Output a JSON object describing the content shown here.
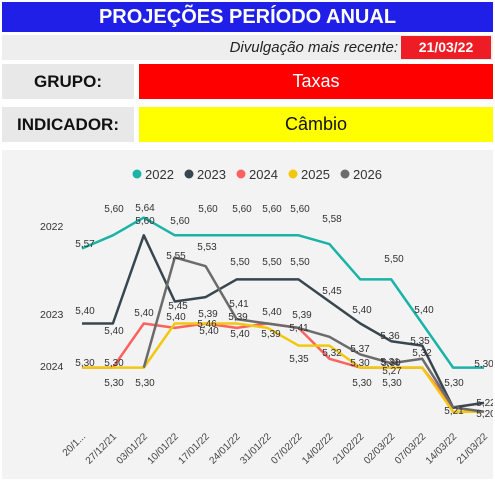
{
  "header": {
    "title": "PROJEÇÕES PERÍODO ANUAL"
  },
  "publication": {
    "label": "Divulgação mais recente:",
    "date": "21/03/22"
  },
  "grupo": {
    "label": "GRUPO:",
    "value": "Taxas"
  },
  "indicador": {
    "label": "INDICADOR:",
    "value": "Câmbio"
  },
  "colors": {
    "title_bg": "#1f1fe8",
    "date_bg": "#ee1c25",
    "grupo_bg": "#ff0000",
    "indicador_bg": "#ffff00"
  },
  "chart_data": {
    "type": "line",
    "categories": [
      "20/1...",
      "27/12/21",
      "03/01/22",
      "10/01/22",
      "17/01/22",
      "24/01/22",
      "31/01/22",
      "07/02/22",
      "14/02/22",
      "21/02/22",
      "02/03/22",
      "07/03/22",
      "14/03/22",
      "21/03/22"
    ],
    "ylim": [
      5.17,
      5.68
    ],
    "series": [
      {
        "name": "2022",
        "color": "#1ab3a6",
        "values": [
          5.57,
          5.6,
          5.64,
          5.6,
          5.6,
          5.6,
          5.6,
          5.6,
          5.58,
          5.5,
          5.5,
          5.4,
          5.3,
          5.3
        ]
      },
      {
        "name": "2023",
        "color": "#37464f",
        "values": [
          5.4,
          5.4,
          5.6,
          5.45,
          5.46,
          5.5,
          5.5,
          5.5,
          5.45,
          5.4,
          5.36,
          5.35,
          5.21,
          5.22
        ]
      },
      {
        "name": "2024",
        "color": "#fd625e",
        "values": [
          5.3,
          5.3,
          5.4,
          5.39,
          5.4,
          5.39,
          5.4,
          5.39,
          5.32,
          5.3,
          5.3,
          5.3,
          5.21,
          5.2
        ]
      },
      {
        "name": "2025",
        "color": "#f2c80f",
        "values": [
          5.3,
          5.3,
          5.3,
          5.4,
          5.4,
          5.4,
          5.39,
          5.35,
          5.35,
          5.3,
          5.3,
          5.3,
          5.2,
          5.2
        ]
      },
      {
        "name": "2026",
        "color": "#6b6b6b",
        "values": [
          null,
          null,
          5.3,
          5.55,
          5.53,
          5.41,
          5.4,
          5.39,
          5.37,
          5.33,
          5.31,
          5.32,
          5.21,
          5.2
        ]
      }
    ],
    "data_labels": [
      {
        "text": "5,57"
      },
      {
        "text": "5,60"
      },
      {
        "text": "5,64"
      },
      {
        "text": "5,60"
      },
      {
        "text": "5,60"
      },
      {
        "text": "5,60"
      },
      {
        "text": "5,60"
      },
      {
        "text": "5,58"
      },
      {
        "text": "5,50"
      },
      {
        "text": "5,40"
      },
      {
        "text": "5,30"
      },
      {
        "text": "5,40"
      },
      {
        "text": "5,40"
      },
      {
        "text": "5,60"
      },
      {
        "text": "5,60"
      },
      {
        "text": "5,45"
      },
      {
        "text": "5,46"
      },
      {
        "text": "5,50"
      },
      {
        "text": "5,50"
      },
      {
        "text": "5,50"
      },
      {
        "text": "5,45"
      },
      {
        "text": "5,40"
      },
      {
        "text": "5,36"
      },
      {
        "text": "5,35"
      },
      {
        "text": "5,55"
      },
      {
        "text": "5,53"
      },
      {
        "text": "5,41"
      },
      {
        "text": "5,39"
      },
      {
        "text": "5,40"
      },
      {
        "text": "5,39"
      },
      {
        "text": "5,37"
      },
      {
        "text": "5,31"
      },
      {
        "text": "5,32"
      },
      {
        "text": "5,40"
      },
      {
        "text": "5,40"
      },
      {
        "text": "5,39"
      },
      {
        "text": "5,40"
      },
      {
        "text": "5,40"
      },
      {
        "text": "5,39"
      },
      {
        "text": "5,41"
      },
      {
        "text": "5,35"
      },
      {
        "text": "5,32"
      },
      {
        "text": "5,30"
      },
      {
        "text": "5,30"
      },
      {
        "text": "5,27"
      },
      {
        "text": "5,30"
      },
      {
        "text": "5,30"
      },
      {
        "text": "5,30"
      },
      {
        "text": "5,30"
      },
      {
        "text": "5,30"
      },
      {
        "text": "5,30"
      },
      {
        "text": "5,30"
      },
      {
        "text": "5,21"
      },
      {
        "text": "5,22"
      },
      {
        "text": "5,20"
      }
    ],
    "row_labels": [
      "2022",
      "2023",
      "2024"
    ]
  }
}
